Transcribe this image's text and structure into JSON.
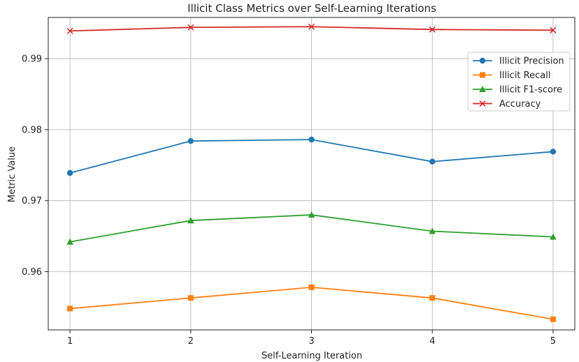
{
  "chart_data": {
    "type": "line",
    "title": "Illicit Class Metrics over Self-Learning Iterations",
    "xlabel": "Self-Learning Iteration",
    "ylabel": "Metric Value",
    "x": [
      1,
      2,
      3,
      4,
      5
    ],
    "xlim": [
      0.82,
      5.18
    ],
    "ylim": [
      0.9518,
      0.9958
    ],
    "yticks": [
      0.96,
      0.97,
      0.98,
      0.99
    ],
    "ytick_labels": [
      "0.96",
      "0.97",
      "0.98",
      "0.99"
    ],
    "xtick_labels": [
      "1",
      "2",
      "3",
      "4",
      "5"
    ],
    "grid": true,
    "legend_position": "right",
    "series": [
      {
        "name": "Illicit Precision",
        "values": [
          0.9739,
          0.9784,
          0.9786,
          0.9755,
          0.9769
        ],
        "color": "#1f77b4",
        "marker": "circle"
      },
      {
        "name": "Illicit Recall",
        "values": [
          0.9548,
          0.9563,
          0.9578,
          0.9563,
          0.9533
        ],
        "color": "#ff7f0e",
        "marker": "square"
      },
      {
        "name": "Illicit F1-score",
        "values": [
          0.9642,
          0.9672,
          0.968,
          0.9657,
          0.9649
        ],
        "color": "#2ca02c",
        "marker": "triangle"
      },
      {
        "name": "Accuracy",
        "values": [
          0.9939,
          0.9944,
          0.9945,
          0.9941,
          0.994
        ],
        "color": "#d62728",
        "marker": "x"
      }
    ]
  }
}
